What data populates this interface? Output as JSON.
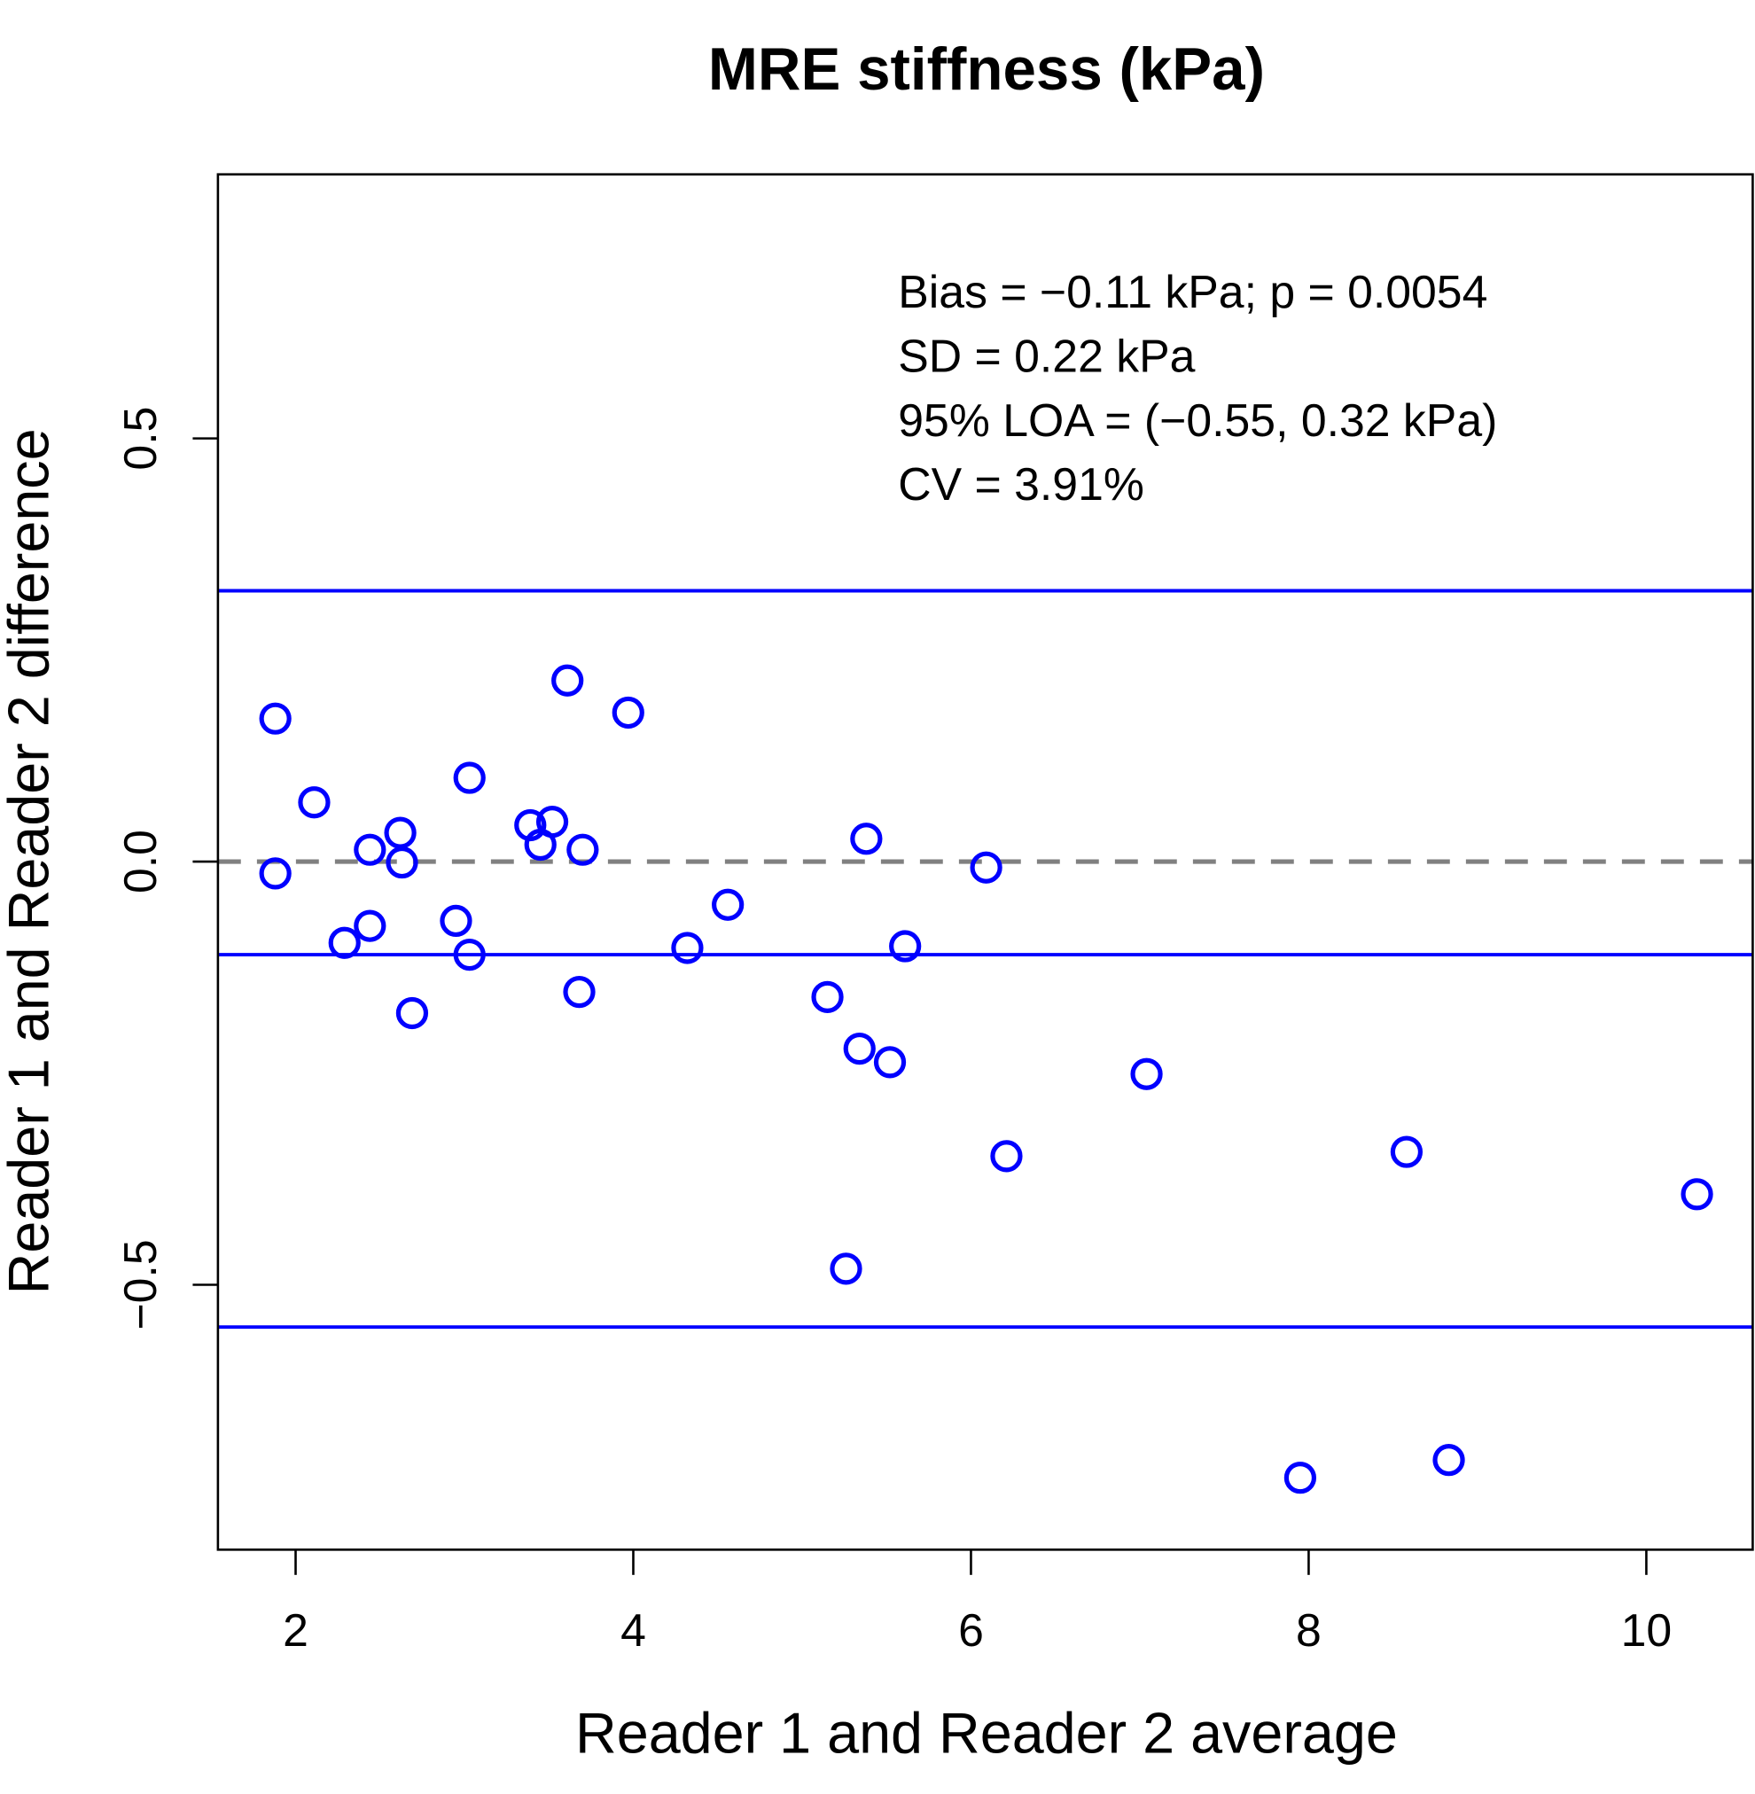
{
  "chart_data": {
    "type": "scatter",
    "title": "MRE stiffness (kPa)",
    "xlabel": "Reader 1 and Reader 2 average",
    "ylabel": "Reader 1 and Reader 2 difference",
    "xlim": [
      1.54,
      10.63
    ],
    "ylim": [
      -0.813,
      0.812
    ],
    "xticks": [
      2,
      4,
      6,
      8,
      10
    ],
    "xtick_labels": [
      "2",
      "4",
      "6",
      "8",
      "10"
    ],
    "yticks": [
      -0.5,
      0.0,
      0.5
    ],
    "ytick_labels": [
      "−0.5",
      "0.0",
      "0.5"
    ],
    "grid": false,
    "point_color": "#0000ff",
    "hlines": [
      {
        "y": 0.32,
        "color": "#0000ff",
        "style": "solid"
      },
      {
        "y": -0.11,
        "color": "#0000ff",
        "style": "solid"
      },
      {
        "y": -0.55,
        "color": "#0000ff",
        "style": "solid"
      },
      {
        "y": 0.0,
        "color": "#808080",
        "style": "dashed"
      }
    ],
    "annotations": [
      "Bias = −0.11 kPa; p =  0.0054",
      "SD = 0.22 kPa",
      "95% LOA = (−0.55, 0.32 kPa)",
      "CV = 3.91%"
    ],
    "points": [
      [
        1.88,
        0.169
      ],
      [
        1.88,
        -0.014
      ],
      [
        2.11,
        0.07
      ],
      [
        2.29,
        -0.096
      ],
      [
        2.44,
        0.014
      ],
      [
        2.44,
        -0.076
      ],
      [
        2.62,
        0.034
      ],
      [
        2.63,
        -0.001
      ],
      [
        2.69,
        -0.179
      ],
      [
        2.95,
        -0.07
      ],
      [
        3.03,
        -0.11
      ],
      [
        3.03,
        0.099
      ],
      [
        3.39,
        0.043
      ],
      [
        3.45,
        0.02
      ],
      [
        3.52,
        0.047
      ],
      [
        3.61,
        0.214
      ],
      [
        3.68,
        -0.154
      ],
      [
        3.7,
        0.014
      ],
      [
        3.97,
        0.176
      ],
      [
        4.32,
        -0.102
      ],
      [
        4.56,
        -0.051
      ],
      [
        5.15,
        -0.16
      ],
      [
        5.26,
        -0.481
      ],
      [
        5.34,
        -0.221
      ],
      [
        5.38,
        0.027
      ],
      [
        5.52,
        -0.237
      ],
      [
        5.61,
        -0.1
      ],
      [
        6.09,
        -0.007
      ],
      [
        6.21,
        -0.348
      ],
      [
        7.04,
        -0.251
      ],
      [
        7.95,
        -0.728
      ],
      [
        8.58,
        -0.343
      ],
      [
        8.83,
        -0.707
      ],
      [
        10.3,
        -0.393
      ]
    ]
  }
}
